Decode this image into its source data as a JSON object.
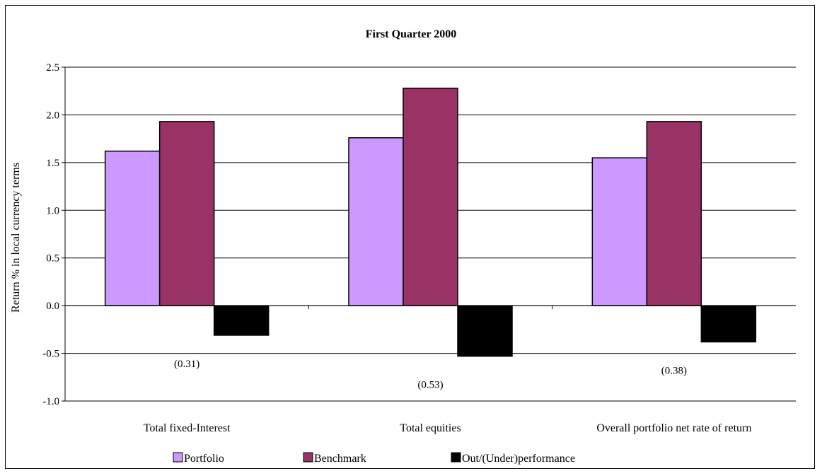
{
  "chart_data": {
    "type": "bar",
    "title": "First Quarter 2000",
    "ylabel": "Return % in local currency terms",
    "xlabel": "",
    "categories": [
      "Total fixed-Interest",
      "Total equities",
      "Overall portfolio net rate of return"
    ],
    "series": [
      {
        "name": "Portfolio",
        "color": "#cc99ff",
        "values": [
          1.62,
          1.76,
          1.55
        ]
      },
      {
        "name": "Benchmark",
        "color": "#993366",
        "values": [
          1.93,
          2.28,
          1.93
        ]
      },
      {
        "name": "Out/(Under)performance",
        "color": "#000000",
        "values": [
          -0.31,
          -0.53,
          -0.38
        ]
      }
    ],
    "data_labels": [
      "(0.31)",
      "(0.53)",
      "(0.38)"
    ],
    "ylim": [
      -1.0,
      2.5
    ],
    "yticks": [
      2.5,
      2.0,
      1.5,
      1.0,
      0.5,
      0.0,
      -0.5,
      -1.0
    ],
    "ytick_labels": [
      "2.5",
      "2.0",
      "1.5",
      "1.0",
      "0.5",
      "0.0",
      "-0.5",
      "-1.0"
    ],
    "grid": true,
    "legend": "bottom"
  }
}
